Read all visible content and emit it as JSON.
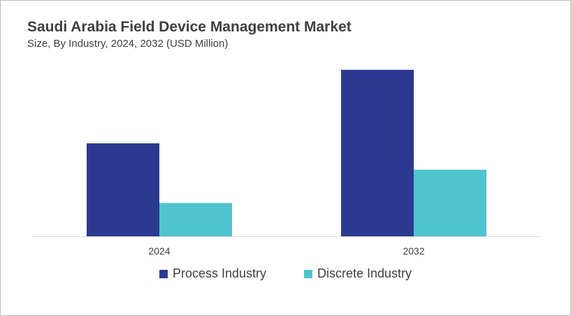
{
  "chart_data": {
    "type": "bar",
    "title": "Saudi Arabia Field Device Management Market",
    "subtitle": "Size, By Industry, 2024, 2032 (USD Million)",
    "xlabel": "",
    "ylabel": "",
    "categories": [
      "2024",
      "2032"
    ],
    "series": [
      {
        "name": "Process Industry",
        "color": "#2b3990",
        "values": [
          134,
          240
        ]
      },
      {
        "name": "Discrete Industry",
        "color": "#4fc4cf",
        "values": [
          48,
          96
        ]
      }
    ],
    "ylim": [
      0,
      260
    ],
    "grid": false,
    "legend_position": "bottom"
  }
}
